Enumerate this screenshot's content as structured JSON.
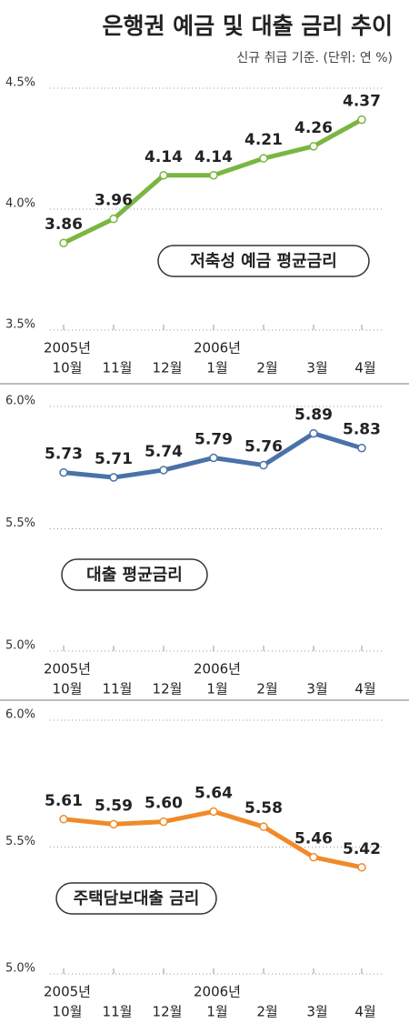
{
  "title": "은행권 예금 및 대출 금리 추이",
  "subtitle": "신규 취급 기준. (단위: 연 %)",
  "chart_data": [
    {
      "type": "line",
      "categories": [
        "10월",
        "11월",
        "12월",
        "1월",
        "2월",
        "3월",
        "4월"
      ],
      "year_labels": [
        "2005년",
        null,
        null,
        "2006년",
        null,
        null,
        null
      ],
      "series": [
        {
          "name": "저축성 예금 평균금리",
          "color": "#7ab642",
          "values": [
            3.86,
            3.96,
            4.14,
            4.14,
            4.21,
            4.26,
            4.37
          ],
          "value_labels": [
            "3.86",
            "3.96",
            "4.14",
            "4.14",
            "4.21",
            "4.26",
            "4.37"
          ]
        }
      ],
      "ylim": [
        3.5,
        4.5
      ],
      "yticks": [
        {
          "value": 3.5,
          "label": "3.5%"
        },
        {
          "value": 4.0,
          "label": "4.0%"
        },
        {
          "value": 4.5,
          "label": "4.5%"
        }
      ],
      "grid": true
    },
    {
      "type": "line",
      "categories": [
        "10월",
        "11월",
        "12월",
        "1월",
        "2월",
        "3월",
        "4월"
      ],
      "year_labels": [
        "2005년",
        null,
        null,
        "2006년",
        null,
        null,
        null
      ],
      "series": [
        {
          "name": "대출 평균금리",
          "color": "#4a72a8",
          "values": [
            5.73,
            5.71,
            5.74,
            5.79,
            5.76,
            5.89,
            5.83
          ],
          "value_labels": [
            "5.73",
            "5.71",
            "5.74",
            "5.79",
            "5.76",
            "5.89",
            "5.83"
          ]
        }
      ],
      "ylim": [
        5.0,
        6.0
      ],
      "yticks": [
        {
          "value": 5.0,
          "label": "5.0%"
        },
        {
          "value": 5.5,
          "label": "5.5%"
        },
        {
          "value": 6.0,
          "label": "6.0%"
        }
      ],
      "grid": true
    },
    {
      "type": "line",
      "categories": [
        "10월",
        "11월",
        "12월",
        "1월",
        "2월",
        "3월",
        "4월"
      ],
      "year_labels": [
        "2005년",
        null,
        null,
        "2006년",
        null,
        null,
        null
      ],
      "series": [
        {
          "name": "주택담보대출 금리",
          "color": "#f08a2a",
          "values": [
            5.61,
            5.59,
            5.6,
            5.64,
            5.58,
            5.46,
            5.42
          ],
          "value_labels": [
            "5.61",
            "5.59",
            "5.60",
            "5.64",
            "5.58",
            "5.46",
            "5.42"
          ]
        }
      ],
      "ylim": [
        5.0,
        6.0
      ],
      "yticks": [
        {
          "value": 5.0,
          "label": "5.0%"
        },
        {
          "value": 5.5,
          "label": "5.5%"
        },
        {
          "value": 6.0,
          "label": "6.0%"
        }
      ],
      "grid": true
    }
  ]
}
